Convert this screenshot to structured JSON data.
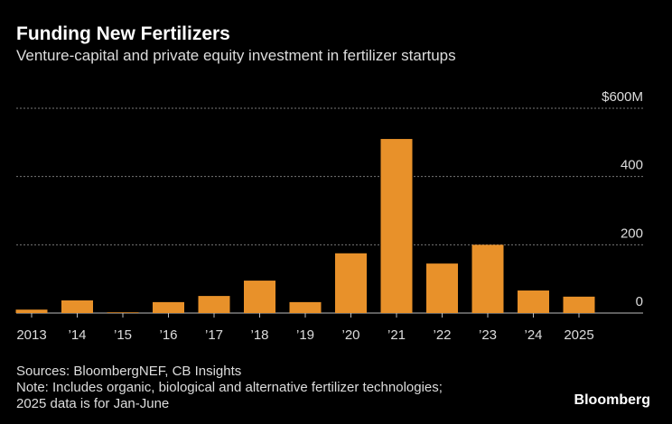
{
  "chart_data": {
    "type": "bar",
    "title": "Funding New Fertilizers",
    "subtitle": "Venture-capital and private equity investment in fertilizer startups",
    "categories": [
      "2013",
      "’14",
      "’15",
      "’16",
      "’17",
      "’18",
      "’19",
      "’20",
      "’21",
      "’22",
      "’23",
      "’24",
      "2025"
    ],
    "values": [
      10,
      37,
      2,
      32,
      50,
      95,
      32,
      175,
      510,
      145,
      200,
      66,
      48
    ],
    "color": "#e8912a",
    "ylim": [
      0,
      600
    ],
    "yticks": [
      0,
      200,
      400,
      {
        "value": 600,
        "label": "$600M"
      }
    ],
    "grid": true
  },
  "footer": {
    "source": "Sources: BloombergNEF, CB Insights",
    "note": [
      "Note: Includes organic, biological and alternative fertilizer technologies;",
      "2025 data is for Jan-June"
    ],
    "logo": "Bloomberg"
  }
}
